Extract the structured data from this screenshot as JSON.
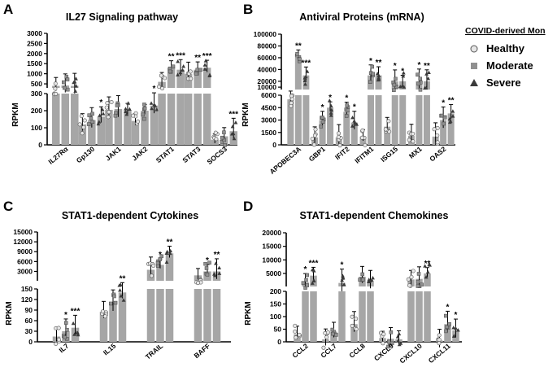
{
  "legend": {
    "title": "COVID-derived Mon",
    "groups": [
      {
        "name": "Healthy",
        "marker": "circle",
        "color": "#e6e6e6"
      },
      {
        "name": "Moderate",
        "marker": "square",
        "color": "#909090"
      },
      {
        "name": "Severe",
        "marker": "triangle",
        "color": "#3a3a3a"
      }
    ]
  },
  "chart_data": [
    {
      "panel": "A",
      "type": "bar",
      "title": "IL27 Signaling pathway",
      "ylabel": "RPKM",
      "groups": [
        "Healthy",
        "Moderate",
        "Severe"
      ],
      "categories": [
        "IL27Rα",
        "Gp130",
        "JAK1",
        "JAK2",
        "STAT1",
        "STAT3",
        "SOCS3"
      ],
      "series": [
        {
          "name": "Healthy",
          "values": [
            400,
            120,
            205,
            140,
            600,
            1000,
            30
          ]
        },
        {
          "name": "Moderate",
          "values": [
            420,
            145,
            210,
            200,
            1300,
            1200,
            50
          ]
        },
        {
          "name": "Severe",
          "values": [
            400,
            165,
            200,
            230,
            1200,
            1300,
            80
          ]
        }
      ],
      "axis_segments": [
        {
          "range": [
            0,
            300
          ],
          "ticks": [
            "0",
            "100",
            "200",
            "300"
          ]
        },
        {
          "range": [
            300,
            3000
          ],
          "ticks": [
            "500",
            "1000",
            "1500",
            "2000",
            "2500",
            "3000"
          ]
        }
      ],
      "significance": [
        "",
        [
          "",
          "",
          "*"
        ],
        "",
        [
          "",
          "",
          "*"
        ],
        [
          "",
          "**",
          "***"
        ],
        [
          "",
          "**",
          "***"
        ],
        [
          "",
          "",
          "***"
        ]
      ]
    },
    {
      "panel": "B",
      "type": "bar",
      "title": "Antiviral Proteins (mRNA)",
      "ylabel": "RPKM",
      "groups": [
        "Healthy",
        "Moderate",
        "Severe"
      ],
      "categories": [
        "APOBEC3A",
        "GBP1",
        "IFIT2",
        "IFITM1",
        "ISG15",
        "MX1",
        "OAS2"
      ],
      "series": [
        {
          "name": "Healthy",
          "values": [
            5500,
            900,
            900,
            1000,
            2200,
            1100,
            1000
          ]
        },
        {
          "name": "Moderate",
          "values": [
            60000,
            3000,
            4000,
            30000,
            20000,
            20000,
            3000
          ]
        },
        {
          "name": "Severe",
          "values": [
            30000,
            4500,
            2700,
            30000,
            20000,
            20000,
            3800
          ]
        }
      ],
      "axis_segments": [
        {
          "range": [
            0,
            6000
          ],
          "ticks": [
            "0",
            "1500",
            "3000",
            "4500",
            "6000"
          ]
        },
        {
          "range": [
            6000,
            100000
          ],
          "ticks": [
            "10000",
            "20000",
            "40000",
            "60000",
            "80000",
            "100000"
          ]
        }
      ],
      "significance": [
        [
          "",
          "**",
          "***"
        ],
        [
          "",
          "*",
          "*"
        ],
        [
          "",
          "*",
          "*"
        ],
        [
          "",
          "*",
          "**"
        ],
        [
          "",
          "*",
          "*"
        ],
        [
          "",
          "*",
          "**"
        ],
        [
          "",
          "*",
          "**"
        ]
      ]
    },
    {
      "panel": "C",
      "type": "bar",
      "title": "STAT1-dependent Cytokines",
      "ylabel": "RPKM",
      "groups": [
        "Healthy",
        "Moderate",
        "Severe"
      ],
      "categories": [
        "IL7",
        "IL15",
        "TRAIL",
        "BAFF"
      ],
      "series": [
        {
          "name": "Healthy",
          "values": [
            15,
            85,
            3500,
            1800
          ]
        },
        {
          "name": "Moderate",
          "values": [
            30,
            110,
            5000,
            3000
          ]
        },
        {
          "name": "Severe",
          "values": [
            40,
            140,
            8500,
            3000
          ]
        }
      ],
      "axis_segments": [
        {
          "range": [
            0,
            150
          ],
          "ticks": [
            "0",
            "30",
            "60",
            "90",
            "120",
            "150"
          ]
        },
        {
          "range": [
            150,
            15000
          ],
          "ticks": [
            "3000",
            "6000",
            "9000",
            "12000",
            "15000"
          ]
        }
      ],
      "significance": [
        [
          "",
          "*",
          "***"
        ],
        [
          "",
          "",
          "**"
        ],
        [
          "",
          "*",
          "**"
        ],
        [
          "",
          "*",
          "**"
        ]
      ]
    },
    {
      "panel": "D",
      "type": "bar",
      "title": "STAT1-dependent Chemokines",
      "ylabel": "RPKM",
      "groups": [
        "Healthy",
        "Moderate",
        "Severe"
      ],
      "categories": [
        "CCL2",
        "CCL7",
        "CCL8",
        "CXCL9",
        "CXCL10",
        "CXCL11"
      ],
      "series": [
        {
          "name": "Healthy",
          "values": [
            30,
            10,
            70,
            15,
            2800,
            5
          ]
        },
        {
          "name": "Moderate",
          "values": [
            1800,
            40,
            3800,
            12,
            3000,
            70
          ]
        },
        {
          "name": "Severe",
          "values": [
            4200,
            1500,
            2000,
            10,
            5000,
            45
          ]
        }
      ],
      "axis_segments": [
        {
          "range": [
            0,
            200
          ],
          "ticks": [
            "0",
            "50",
            "100",
            "150",
            "200"
          ]
        },
        {
          "range": [
            200,
            20000
          ],
          "ticks": [
            "5000",
            "10000",
            "15000",
            "20000"
          ]
        }
      ],
      "significance": [
        [
          "",
          "*",
          "***"
        ],
        [
          "",
          "",
          "*"
        ],
        "",
        "",
        [
          "",
          "",
          "**"
        ],
        [
          "",
          "*",
          "*"
        ]
      ]
    }
  ]
}
